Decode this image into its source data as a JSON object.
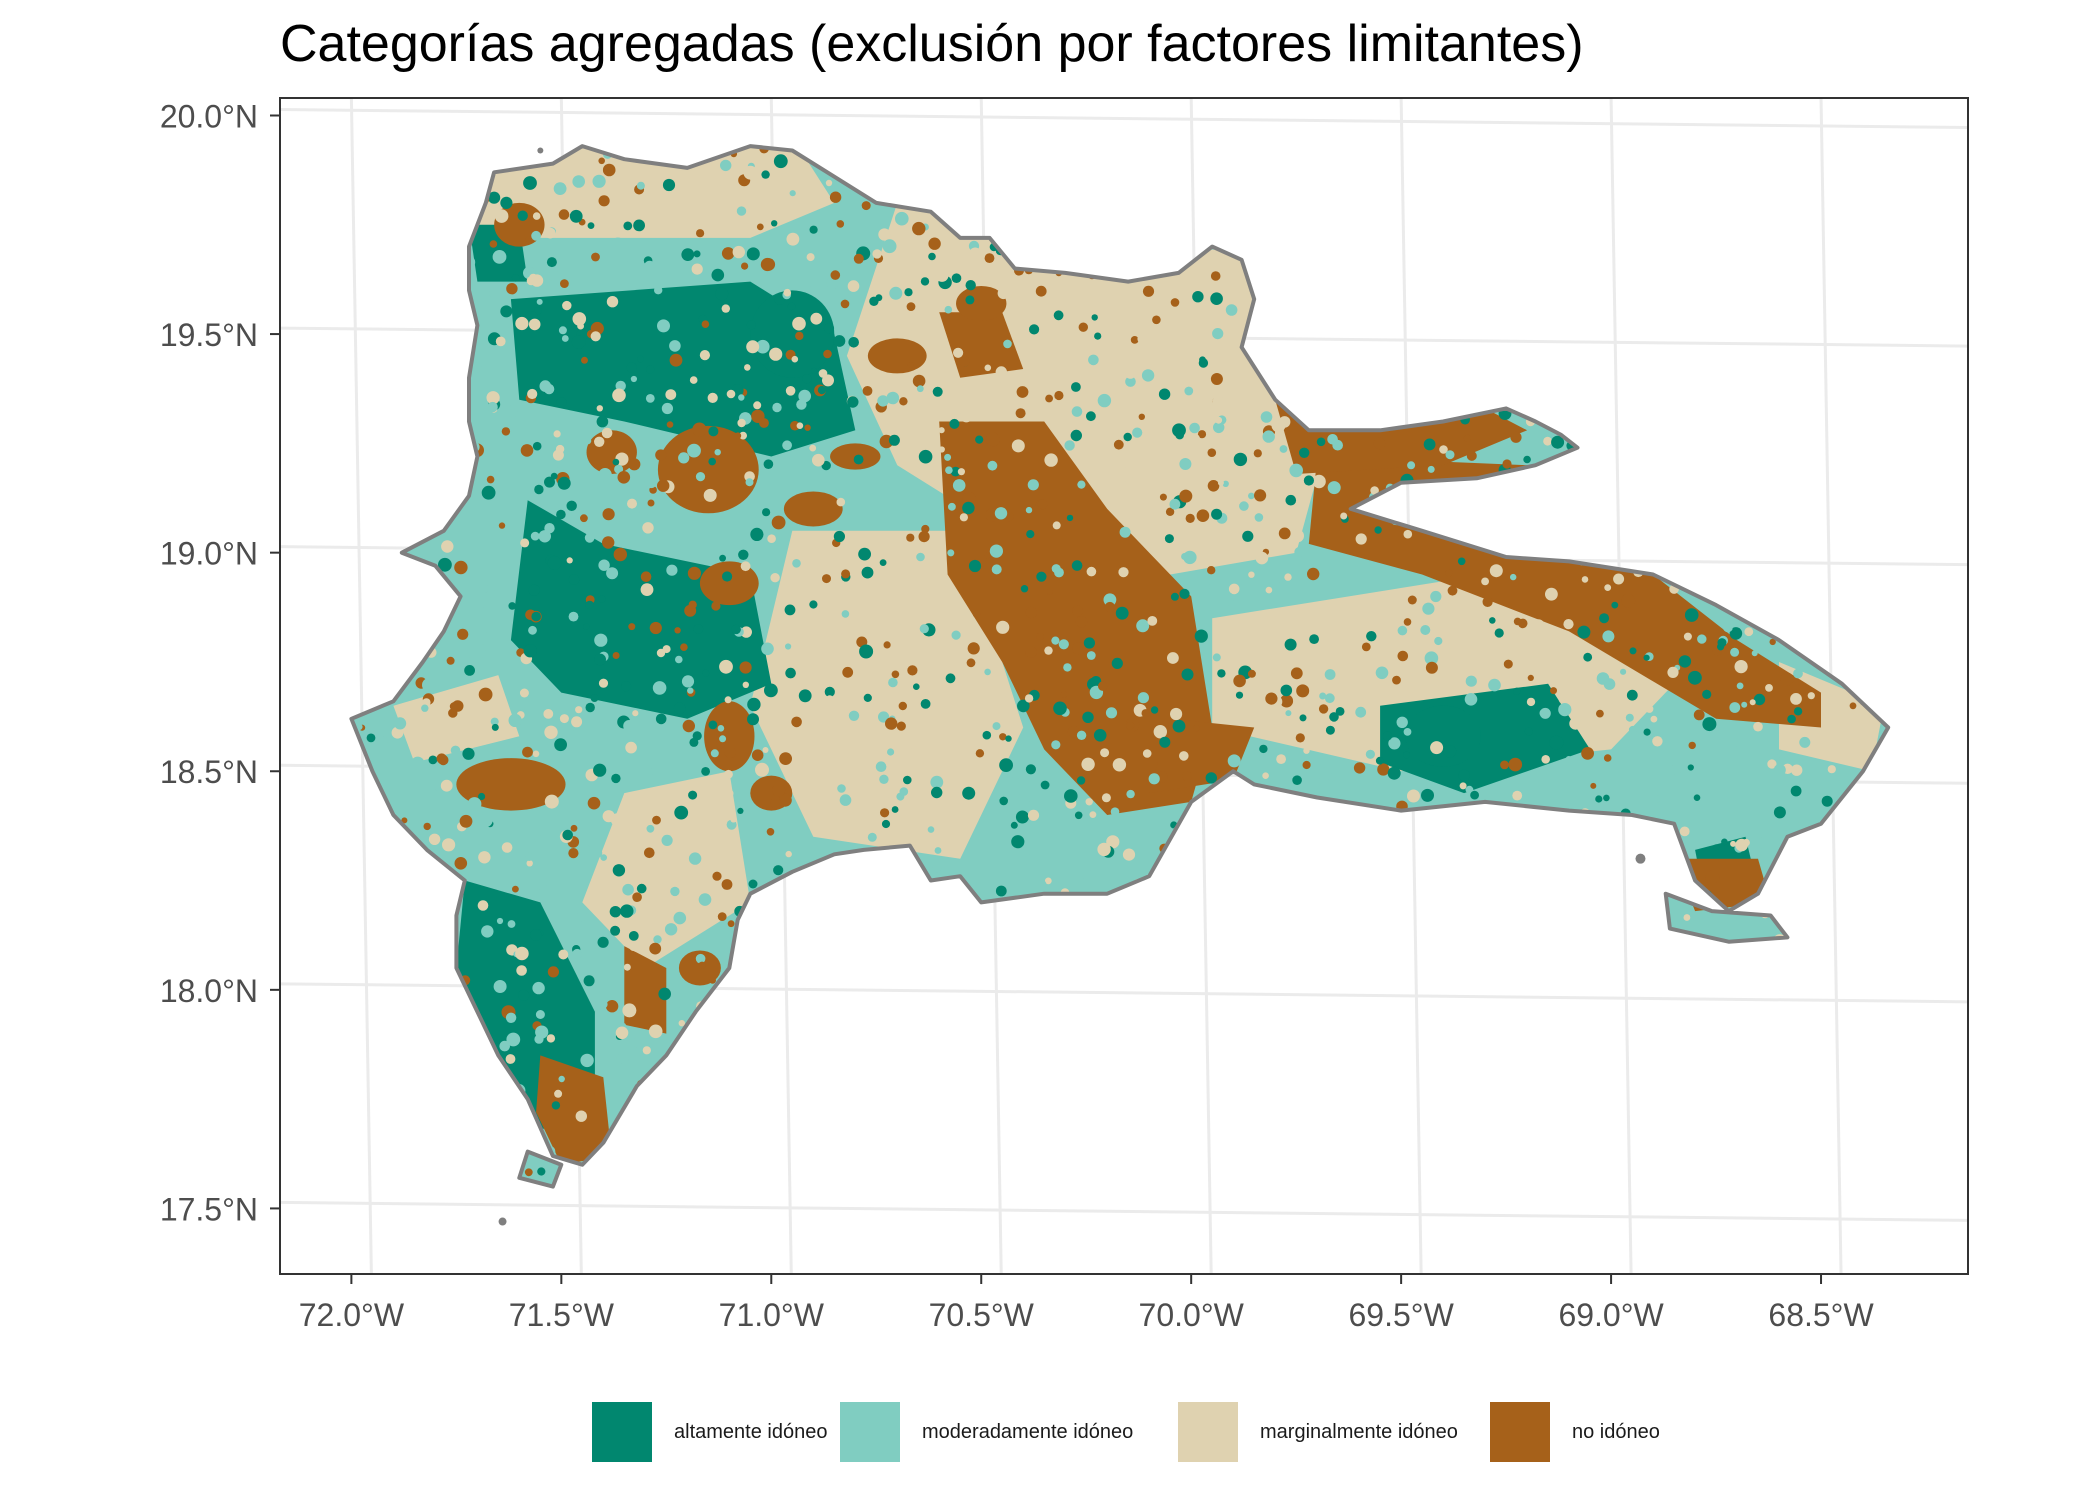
{
  "title": "Categorías agregadas (exclusión por factores limitantes)",
  "map": {
    "lon_range": [
      -72.17,
      -68.15
    ],
    "lat_range": [
      17.35,
      20.04
    ],
    "x_ticks": [
      {
        "value": -72.0,
        "label": "72.0°W"
      },
      {
        "value": -71.5,
        "label": "71.5°W"
      },
      {
        "value": -71.0,
        "label": "71.0°W"
      },
      {
        "value": -70.5,
        "label": "70.5°W"
      },
      {
        "value": -70.0,
        "label": "70.0°W"
      },
      {
        "value": -69.5,
        "label": "69.5°W"
      },
      {
        "value": -69.0,
        "label": "69.0°W"
      },
      {
        "value": -68.5,
        "label": "68.5°W"
      }
    ],
    "y_ticks": [
      {
        "value": 20.0,
        "label": "20.0°N"
      },
      {
        "value": 19.5,
        "label": "19.5°N"
      },
      {
        "value": 19.0,
        "label": "19.0°N"
      },
      {
        "value": 18.5,
        "label": "18.5°N"
      },
      {
        "value": 18.0,
        "label": "18.0°N"
      },
      {
        "value": 17.5,
        "label": "17.5°N"
      }
    ],
    "grid": true,
    "outline_color": "#7f7f7f"
  },
  "legend": {
    "placement": "bottom",
    "items": [
      {
        "label": "altamente idóneo",
        "color": "#01876f"
      },
      {
        "label": "moderadamente idóneo",
        "color": "#80cdc1"
      },
      {
        "label": "marginalmente idóneo",
        "color": "#dfd2b0"
      },
      {
        "label": "no idóneo",
        "color": "#a6611a"
      }
    ]
  }
}
